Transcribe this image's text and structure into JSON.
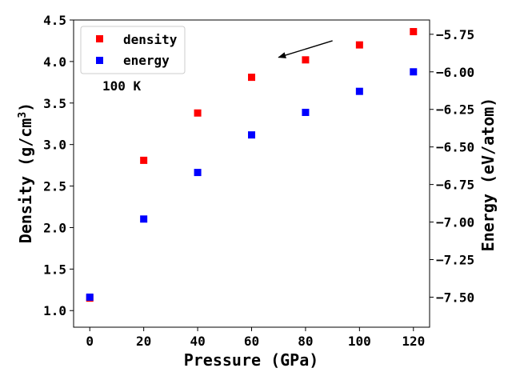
{
  "chart_data": {
    "type": "scatter",
    "x": [
      0,
      20,
      40,
      60,
      80,
      100,
      120
    ],
    "series": [
      {
        "name": "density",
        "axis": "left",
        "color": "#ff0000",
        "marker": "square",
        "values": [
          1.15,
          2.81,
          3.38,
          3.81,
          4.02,
          4.2,
          4.36
        ]
      },
      {
        "name": "energy",
        "axis": "right",
        "color": "#0000ff",
        "marker": "square",
        "values": [
          -7.5,
          -6.98,
          -6.67,
          -6.42,
          -6.27,
          -6.13,
          -6.0
        ]
      }
    ],
    "xlabel": "Pressure (GPa)",
    "ylabel_left": {
      "main": "Density (g/cm",
      "sup": "3",
      "close": ")"
    },
    "ylabel_right": "Energy (eV/atom)",
    "xlim": [
      -6,
      126
    ],
    "ylim_left": [
      0.8,
      4.5
    ],
    "ylim_right": [
      -7.7,
      -5.655
    ],
    "xticks": [
      0,
      20,
      40,
      60,
      80,
      100,
      120
    ],
    "xtick_labels": [
      "0",
      "20",
      "40",
      "60",
      "80",
      "100",
      "120"
    ],
    "yticks_left": [
      1.0,
      1.5,
      2.0,
      2.5,
      3.0,
      3.5,
      4.0,
      4.5
    ],
    "ytick_labels_left": [
      "1.0",
      "1.5",
      "2.0",
      "2.5",
      "3.0",
      "3.5",
      "4.0",
      "4.5"
    ],
    "yticks_right": [
      -7.5,
      -7.25,
      -7.0,
      -6.75,
      -6.5,
      -6.25,
      -6.0,
      -5.75
    ],
    "ytick_labels_right": [
      "−7.50",
      "−7.25",
      "−7.00",
      "−6.75",
      "−6.50",
      "−6.25",
      "−6.00",
      "−5.75"
    ],
    "legend": {
      "placement": "upper-left",
      "entries": [
        "density",
        "energy"
      ]
    },
    "annotations": [
      {
        "text": "100 K"
      },
      {
        "type": "arrow",
        "from": [
          90,
          4.25
        ],
        "to": [
          70,
          4.05
        ]
      }
    ],
    "grid": false
  }
}
